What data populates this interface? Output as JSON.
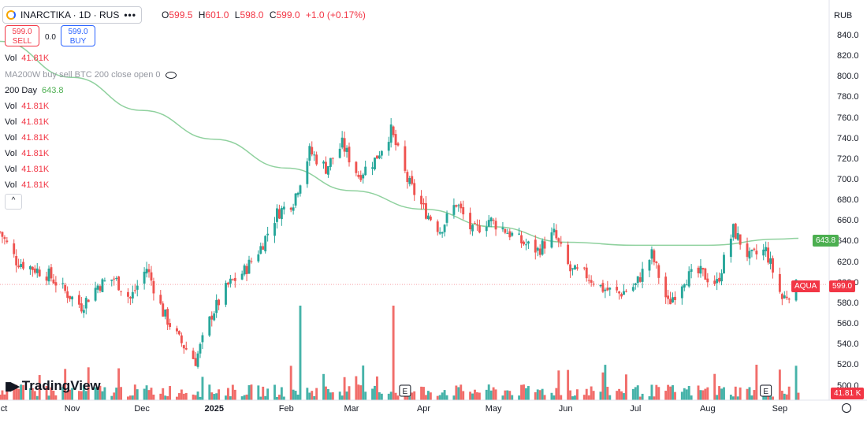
{
  "legend": {
    "symbol_title": "INARCTIKA · 1D · RUS",
    "more_icon": "more-dots-icon",
    "ohlc": [
      {
        "label": "O",
        "value": "599.5"
      },
      {
        "label": "H",
        "value": "601.0"
      },
      {
        "label": "L",
        "value": "598.0"
      },
      {
        "label": "C",
        "value": "599.0"
      },
      {
        "label": "",
        "value": "+1.0 (+0.17%)"
      }
    ]
  },
  "trade": {
    "sell_price": "599.0",
    "sell_label": "SELL",
    "spread": "0.0",
    "buy_price": "599.0",
    "buy_label": "BUY"
  },
  "indicators": [
    {
      "name": "Vol",
      "value": "41.81K",
      "color": "red"
    },
    {
      "name": "MA200W buy sell BTC 200 close open 0",
      "value": "",
      "color": "faded",
      "icon": "eye-icon"
    },
    {
      "name": "200 Day",
      "value": "643.8",
      "color": "green"
    },
    {
      "name": "Vol",
      "value": "41.81K",
      "color": "red"
    },
    {
      "name": "Vol",
      "value": "41.81K",
      "color": "red"
    },
    {
      "name": "Vol",
      "value": "41.81K",
      "color": "red"
    },
    {
      "name": "Vol",
      "value": "41.81K",
      "color": "red"
    },
    {
      "name": "Vol",
      "value": "41.81K",
      "color": "red"
    },
    {
      "name": "Vol",
      "value": "41.81K",
      "color": "red"
    }
  ],
  "collapse_icon": "chevron-up-icon",
  "logo_text": "TradingView",
  "currency": "RUB",
  "colors": {
    "up": "#26a69a",
    "down": "#ef5350",
    "ma": "#8fd19e",
    "ma_tag": "#4caf50",
    "price_tag": "#f23645"
  },
  "price_tags": {
    "ma": "643.8",
    "symbol": "AQUA",
    "last": "599.0",
    "volume": "41.81 K"
  },
  "chart_data": {
    "type": "candlestick",
    "y_ticks": [
      "840.0",
      "820.0",
      "800.0",
      "780.0",
      "760.0",
      "740.0",
      "720.0",
      "700.0",
      "680.0",
      "660.0",
      "640.0",
      "620.0",
      "600.0",
      "580.0",
      "560.0",
      "540.0",
      "520.0",
      "500.0"
    ],
    "ylim": [
      490,
      850
    ],
    "x_ticks": [
      "ct",
      "Nov",
      "Dec",
      "2025",
      "Feb",
      "Mar",
      "Apr",
      "May",
      "Jun",
      "Jul",
      "Aug",
      "Sep"
    ],
    "close_anchors": [
      {
        "date": "2024-10-01",
        "close": 650
      },
      {
        "date": "2024-10-08",
        "close": 622
      },
      {
        "date": "2024-10-15",
        "close": 615
      },
      {
        "date": "2024-10-22",
        "close": 608
      },
      {
        "date": "2024-10-29",
        "close": 592
      },
      {
        "date": "2024-11-05",
        "close": 578
      },
      {
        "date": "2024-11-12",
        "close": 598
      },
      {
        "date": "2024-11-19",
        "close": 605
      },
      {
        "date": "2024-11-26",
        "close": 585
      },
      {
        "date": "2024-12-03",
        "close": 615
      },
      {
        "date": "2024-12-10",
        "close": 572
      },
      {
        "date": "2024-12-17",
        "close": 545
      },
      {
        "date": "2024-12-24",
        "close": 525
      },
      {
        "date": "2024-12-31",
        "close": 570
      },
      {
        "date": "2025-01-07",
        "close": 598
      },
      {
        "date": "2025-01-14",
        "close": 612
      },
      {
        "date": "2025-01-21",
        "close": 635
      },
      {
        "date": "2025-01-28",
        "close": 668
      },
      {
        "date": "2025-02-04",
        "close": 680
      },
      {
        "date": "2025-02-11",
        "close": 728
      },
      {
        "date": "2025-02-18",
        "close": 712
      },
      {
        "date": "2025-02-25",
        "close": 735
      },
      {
        "date": "2025-03-04",
        "close": 705
      },
      {
        "date": "2025-03-11",
        "close": 720
      },
      {
        "date": "2025-03-18",
        "close": 748
      },
      {
        "date": "2025-03-25",
        "close": 700
      },
      {
        "date": "2025-04-01",
        "close": 672
      },
      {
        "date": "2025-04-08",
        "close": 652
      },
      {
        "date": "2025-04-15",
        "close": 678
      },
      {
        "date": "2025-04-22",
        "close": 650
      },
      {
        "date": "2025-04-29",
        "close": 662
      },
      {
        "date": "2025-05-06",
        "close": 652
      },
      {
        "date": "2025-05-13",
        "close": 640
      },
      {
        "date": "2025-05-20",
        "close": 632
      },
      {
        "date": "2025-05-27",
        "close": 648
      },
      {
        "date": "2025-06-03",
        "close": 612
      },
      {
        "date": "2025-06-10",
        "close": 608
      },
      {
        "date": "2025-06-17",
        "close": 595
      },
      {
        "date": "2025-06-24",
        "close": 590
      },
      {
        "date": "2025-07-01",
        "close": 598
      },
      {
        "date": "2025-07-08",
        "close": 628
      },
      {
        "date": "2025-07-15",
        "close": 580
      },
      {
        "date": "2025-07-22",
        "close": 605
      },
      {
        "date": "2025-07-29",
        "close": 610
      },
      {
        "date": "2025-08-05",
        "close": 600
      },
      {
        "date": "2025-08-12",
        "close": 652
      },
      {
        "date": "2025-08-19",
        "close": 625
      },
      {
        "date": "2025-08-26",
        "close": 632
      },
      {
        "date": "2025-09-02",
        "close": 585
      },
      {
        "date": "2025-09-09",
        "close": 599
      }
    ],
    "ma_series": {
      "name": "200 Day",
      "points": [
        {
          "date": "2024-10-01",
          "value": 835
        },
        {
          "date": "2024-11-01",
          "value": 800
        },
        {
          "date": "2024-12-01",
          "value": 768
        },
        {
          "date": "2025-01-01",
          "value": 740
        },
        {
          "date": "2025-02-01",
          "value": 712
        },
        {
          "date": "2025-03-01",
          "value": 690
        },
        {
          "date": "2025-04-01",
          "value": 672
        },
        {
          "date": "2025-05-01",
          "value": 655
        },
        {
          "date": "2025-06-01",
          "value": 640
        },
        {
          "date": "2025-07-01",
          "value": 637
        },
        {
          "date": "2025-08-01",
          "value": 637
        },
        {
          "date": "2025-09-01",
          "value": 643
        },
        {
          "date": "2025-09-09",
          "value": 643.8
        }
      ]
    },
    "volume_spikes": [
      {
        "date": "2025-02-07",
        "value": "high"
      },
      {
        "date": "2025-03-19",
        "value": "high"
      },
      {
        "date": "2025-08-22",
        "value": "medium"
      }
    ],
    "events": [
      {
        "date": "2025-03-24",
        "label": "E"
      },
      {
        "date": "2025-08-26",
        "label": "E"
      }
    ],
    "last_price": 599.0,
    "grid": false
  }
}
